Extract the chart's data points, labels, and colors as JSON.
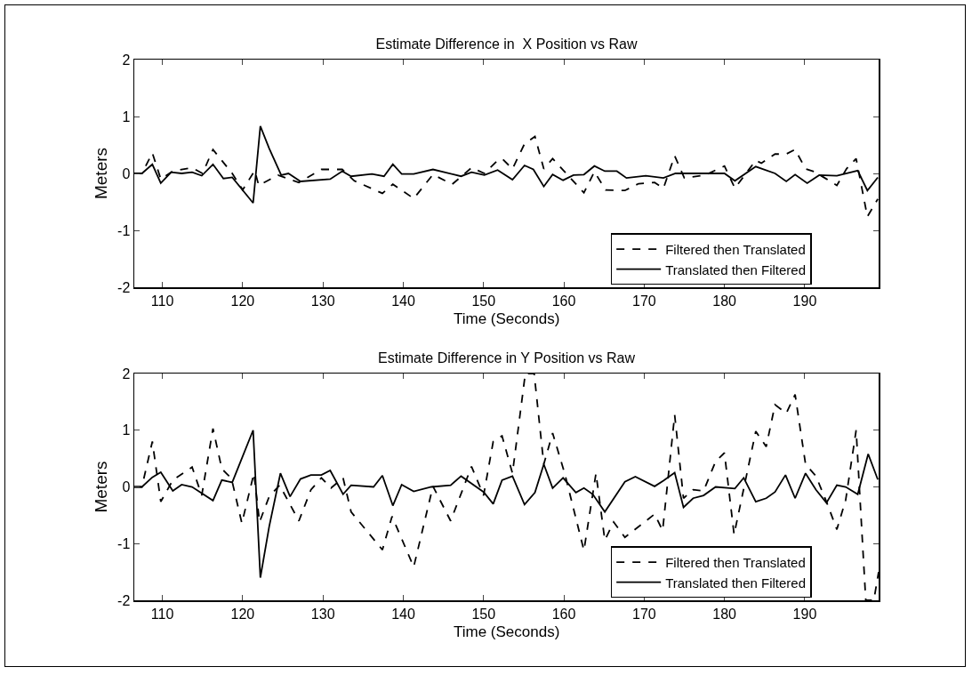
{
  "chart_data": [
    {
      "type": "line",
      "title": "Estimate Difference in  X Position vs Raw",
      "xlabel": "Time (Seconds)",
      "ylabel": "Meters",
      "xlim": [
        106.5,
        199.2
      ],
      "xticks": [
        110,
        120,
        130,
        140,
        150,
        160,
        170,
        180,
        190
      ],
      "ylim": [
        -2,
        2
      ],
      "yticks": [
        -2,
        -1,
        0,
        1,
        2
      ],
      "grid": false,
      "legend": "bottom right",
      "series": [
        {
          "name": "Filtered then Translated",
          "color": "#000000",
          "line_style": "dashed",
          "x": [
            106.5,
            107.45,
            108.75,
            109.8,
            111.3,
            113.7,
            115,
            116.3,
            118.7,
            120,
            121.5,
            122,
            124.4,
            127,
            129.8,
            132.4,
            133.9,
            137.4,
            138.7,
            141.3,
            143.7,
            146.1,
            148.5,
            150.1,
            151.75,
            152.3,
            153.6,
            155.1,
            156.4,
            157.5,
            158.6,
            160.1,
            162.5,
            163.8,
            165.2,
            167.6,
            169.3,
            171.3,
            172.4,
            173.8,
            175,
            177.6,
            180,
            181.3,
            183.9,
            184.6,
            186.3,
            187.7,
            188.8,
            190.1,
            191.2,
            192.5,
            194,
            195.2,
            196.4,
            197.8,
            199.1
          ],
          "values": [
            0,
            0,
            0.36,
            -0.1,
            0.04,
            0.1,
            0,
            0.42,
            0,
            -0.29,
            0.05,
            -0.21,
            -0.03,
            -0.16,
            0.07,
            0.07,
            -0.13,
            -0.35,
            -0.19,
            -0.44,
            -0.02,
            -0.19,
            0.1,
            0,
            0.23,
            0.26,
            0.08,
            0.52,
            0.65,
            0.08,
            0.26,
            0.03,
            -0.34,
            0.03,
            -0.29,
            -0.3,
            -0.18,
            -0.16,
            -0.26,
            0.31,
            -0.08,
            -0.03,
            0.13,
            -0.26,
            0.23,
            0.18,
            0.34,
            0.34,
            0.42,
            0.08,
            0.03,
            -0.08,
            -0.21,
            0.08,
            0.26,
            -0.76,
            -0.45
          ]
        },
        {
          "name": "Translated then Filtered",
          "color": "#000000",
          "line_style": "solid",
          "x": [
            106.5,
            107.45,
            108.75,
            109.8,
            111.1,
            112.4,
            113.7,
            114.9,
            116.3,
            117.6,
            118.7,
            121.3,
            122.2,
            123.3,
            124.8,
            125.7,
            127.2,
            130.9,
            132.4,
            133.5,
            136.1,
            137.6,
            138.7,
            139.8,
            141.3,
            143.7,
            147.2,
            148.5,
            150.1,
            151.75,
            153.6,
            155.1,
            156.2,
            157.5,
            158.6,
            159.9,
            161.2,
            162.5,
            163.8,
            165.1,
            166.6,
            167.8,
            170.2,
            172.4,
            173.9,
            177.6,
            180,
            181.3,
            183.9,
            186.3,
            187.7,
            188.8,
            190.3,
            191.8,
            194,
            196.6,
            197.8,
            199.1
          ],
          "values": [
            0,
            0,
            0.16,
            -0.17,
            0.02,
            0,
            0.02,
            -0.04,
            0.16,
            -0.09,
            -0.07,
            -0.52,
            0.83,
            0.44,
            -0.03,
            0,
            -0.14,
            -0.1,
            0.04,
            -0.05,
            -0.01,
            -0.05,
            0.16,
            -0.01,
            -0.01,
            0.07,
            -0.05,
            0.02,
            -0.03,
            0.06,
            -0.11,
            0.14,
            0.07,
            -0.23,
            -0.02,
            -0.12,
            -0.03,
            -0.02,
            0.13,
            0.04,
            0.04,
            -0.08,
            -0.04,
            -0.08,
            0,
            0,
            0,
            -0.13,
            0.12,
            0,
            -0.14,
            -0.02,
            -0.17,
            -0.03,
            -0.04,
            0.05,
            -0.3,
            -0.07
          ]
        }
      ]
    },
    {
      "type": "line",
      "title": "Estimate Difference in Y Position vs Raw",
      "xlabel": "Time (Seconds)",
      "ylabel": "Meters",
      "xlim": [
        106.5,
        199.2
      ],
      "xticks": [
        110,
        120,
        130,
        140,
        150,
        160,
        170,
        180,
        190
      ],
      "ylim": [
        -2,
        2
      ],
      "yticks": [
        -2,
        -1,
        0,
        1,
        2
      ],
      "grid": false,
      "legend": "bottom right",
      "series": [
        {
          "name": "Filtered then Translated",
          "color": "#000000",
          "line_style": "dashed",
          "x": [
            106.5,
            107.45,
            108.75,
            109.8,
            111.3,
            113.7,
            114.9,
            116.3,
            117.4,
            118.6,
            119.9,
            121.4,
            122.1,
            123.3,
            124.6,
            127,
            128.5,
            129.8,
            131,
            132.5,
            133.5,
            137.4,
            138.6,
            141.3,
            143.7,
            145.9,
            148.5,
            150,
            151.2,
            152.3,
            153.6,
            155.2,
            156.3,
            157.5,
            158.6,
            160.1,
            162.5,
            164,
            165.1,
            166.2,
            167.6,
            171.3,
            172.3,
            173.8,
            174.9,
            176.1,
            177.4,
            178.9,
            180,
            181.2,
            183.9,
            185.2,
            186.3,
            187.7,
            188.8,
            190.1,
            191.4,
            192.7,
            194,
            195.1,
            196.4,
            197.6,
            198.6,
            199.2
          ],
          "values": [
            0,
            0,
            0.8,
            -0.26,
            0.12,
            0.35,
            -0.15,
            1.03,
            0.32,
            0.15,
            -0.64,
            0.24,
            -0.62,
            -0.17,
            0.03,
            -0.6,
            -0.05,
            0.16,
            -0.02,
            0.16,
            -0.44,
            -1.11,
            -0.52,
            -1.41,
            0.01,
            -0.6,
            0.36,
            -0.15,
            0.8,
            0.9,
            0.24,
            2,
            2,
            0.4,
            0.95,
            0.24,
            -1.12,
            0.24,
            -0.94,
            -0.62,
            -0.89,
            -0.48,
            -0.77,
            1.27,
            -0.2,
            -0.05,
            -0.07,
            0.45,
            0.6,
            -0.84,
            0.98,
            0.71,
            1.45,
            1.3,
            1.63,
            0.4,
            0.19,
            -0.26,
            -0.75,
            -0.23,
            1,
            -2,
            -2,
            -1.5
          ]
        },
        {
          "name": "Translated then Filtered",
          "color": "#000000",
          "line_style": "solid",
          "x": [
            106.5,
            107.45,
            108.75,
            109.8,
            111.3,
            112.4,
            113.7,
            116.3,
            117.4,
            118.7,
            121.3,
            122.2,
            123.3,
            124.7,
            125.9,
            127.2,
            128.5,
            129.8,
            130.9,
            132.5,
            133.5,
            136.3,
            137.4,
            138.7,
            139.8,
            141.3,
            143.5,
            145.9,
            147.2,
            150,
            151.2,
            152.3,
            153.6,
            155.1,
            156.4,
            157.5,
            158.6,
            159.9,
            161.5,
            162.5,
            163.6,
            165.1,
            167.6,
            168.9,
            171.3,
            172.4,
            173.8,
            174.9,
            176.1,
            177.4,
            178.9,
            181.3,
            182.4,
            183.9,
            185.2,
            186.3,
            187.6,
            188.8,
            190.1,
            191.4,
            192.7,
            194,
            195.1,
            196.6,
            197.9,
            199.1
          ],
          "values": [
            0,
            0,
            0.17,
            0.26,
            -0.07,
            0.04,
            0,
            -0.24,
            0.12,
            0.08,
            1,
            -1.6,
            -0.7,
            0.24,
            -0.17,
            0.14,
            0.21,
            0.21,
            0.29,
            -0.13,
            0.03,
            0,
            0.2,
            -0.33,
            0.04,
            -0.08,
            0,
            0.03,
            0.19,
            -0.09,
            -0.3,
            0.12,
            0.19,
            -0.31,
            -0.1,
            0.4,
            -0.02,
            0.16,
            -0.1,
            -0.02,
            -0.13,
            -0.44,
            0.09,
            0.18,
            0.01,
            0.11,
            0.25,
            -0.36,
            -0.2,
            -0.15,
            0,
            -0.03,
            0.16,
            -0.26,
            -0.2,
            -0.09,
            0.21,
            -0.2,
            0.24,
            -0.05,
            -0.28,
            0.03,
            0,
            -0.13,
            0.58,
            0.13
          ]
        }
      ]
    }
  ]
}
